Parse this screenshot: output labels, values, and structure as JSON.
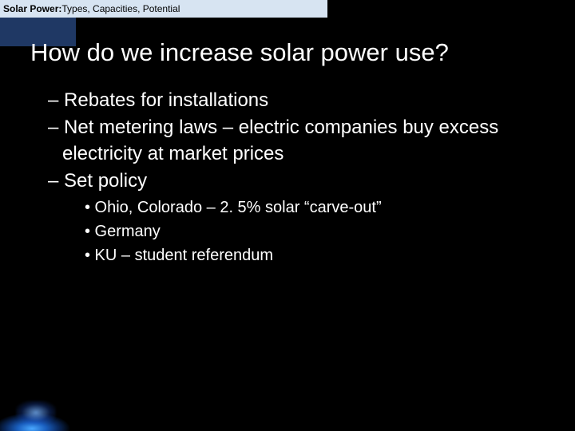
{
  "header": {
    "strong": "Solar Power:",
    "rest": " Types, Capacities, Potential"
  },
  "title": "How do we increase solar power use?",
  "bullets_l1": [
    "– Rebates for installations",
    "– Net metering laws – electric companies buy excess electricity at market prices",
    "– Set policy"
  ],
  "bullets_l2": [
    "• Ohio, Colorado – 2. 5% solar “carve-out”",
    "• Germany",
    "• KU – student referendum"
  ],
  "colors": {
    "background": "#000000",
    "header_bg": "#d7e4f2",
    "blue_block": "#1f3864",
    "text": "#ffffff"
  }
}
